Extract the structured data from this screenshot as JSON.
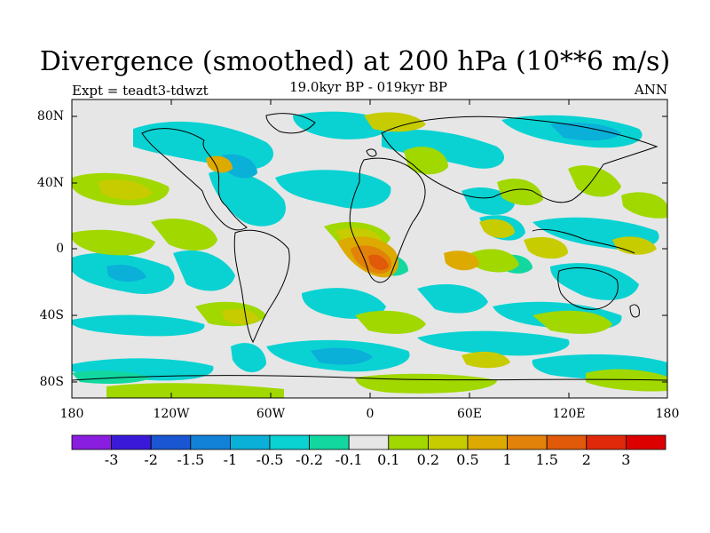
{
  "title": "Divergence (smoothed) at 200 hPa (10**6 m/s)",
  "experiment": "Expt = teadt3-tdwzt",
  "period": "19.0kyr BP - 019kyr BP",
  "season": "ANN",
  "lat_labels": [
    "80N",
    "40N",
    "0",
    "40S",
    "80S"
  ],
  "lon_labels": [
    "180",
    "120W",
    "60W",
    "0",
    "60E",
    "120E",
    "180"
  ],
  "colorbar": {
    "labels": [
      "-3",
      "-2",
      "-1.5",
      "-1",
      "-0.5",
      "-0.2",
      "-0.1",
      "0.1",
      "0.2",
      "0.5",
      "1",
      "1.5",
      "2",
      "3"
    ],
    "colors": [
      "#8a1ee0",
      "#3a1ad8",
      "#1a56d2",
      "#1282d8",
      "#0ab0d8",
      "#0ad2d2",
      "#12d8a0",
      "#e6e6e6",
      "#a0d800",
      "#c6cc00",
      "#dcaa00",
      "#e2820a",
      "#e05a0a",
      "#e0280a",
      "#dc0000"
    ]
  },
  "palette": {
    "neutral": "#e6e6e6",
    "teal": "#0ad2d2",
    "cyan": "#0ab0d8",
    "green": "#12d8a0",
    "lime": "#a0d800",
    "olive": "#c6cc00",
    "gold": "#dcaa00",
    "orange": "#e2820a",
    "redorange": "#e05a0a"
  }
}
